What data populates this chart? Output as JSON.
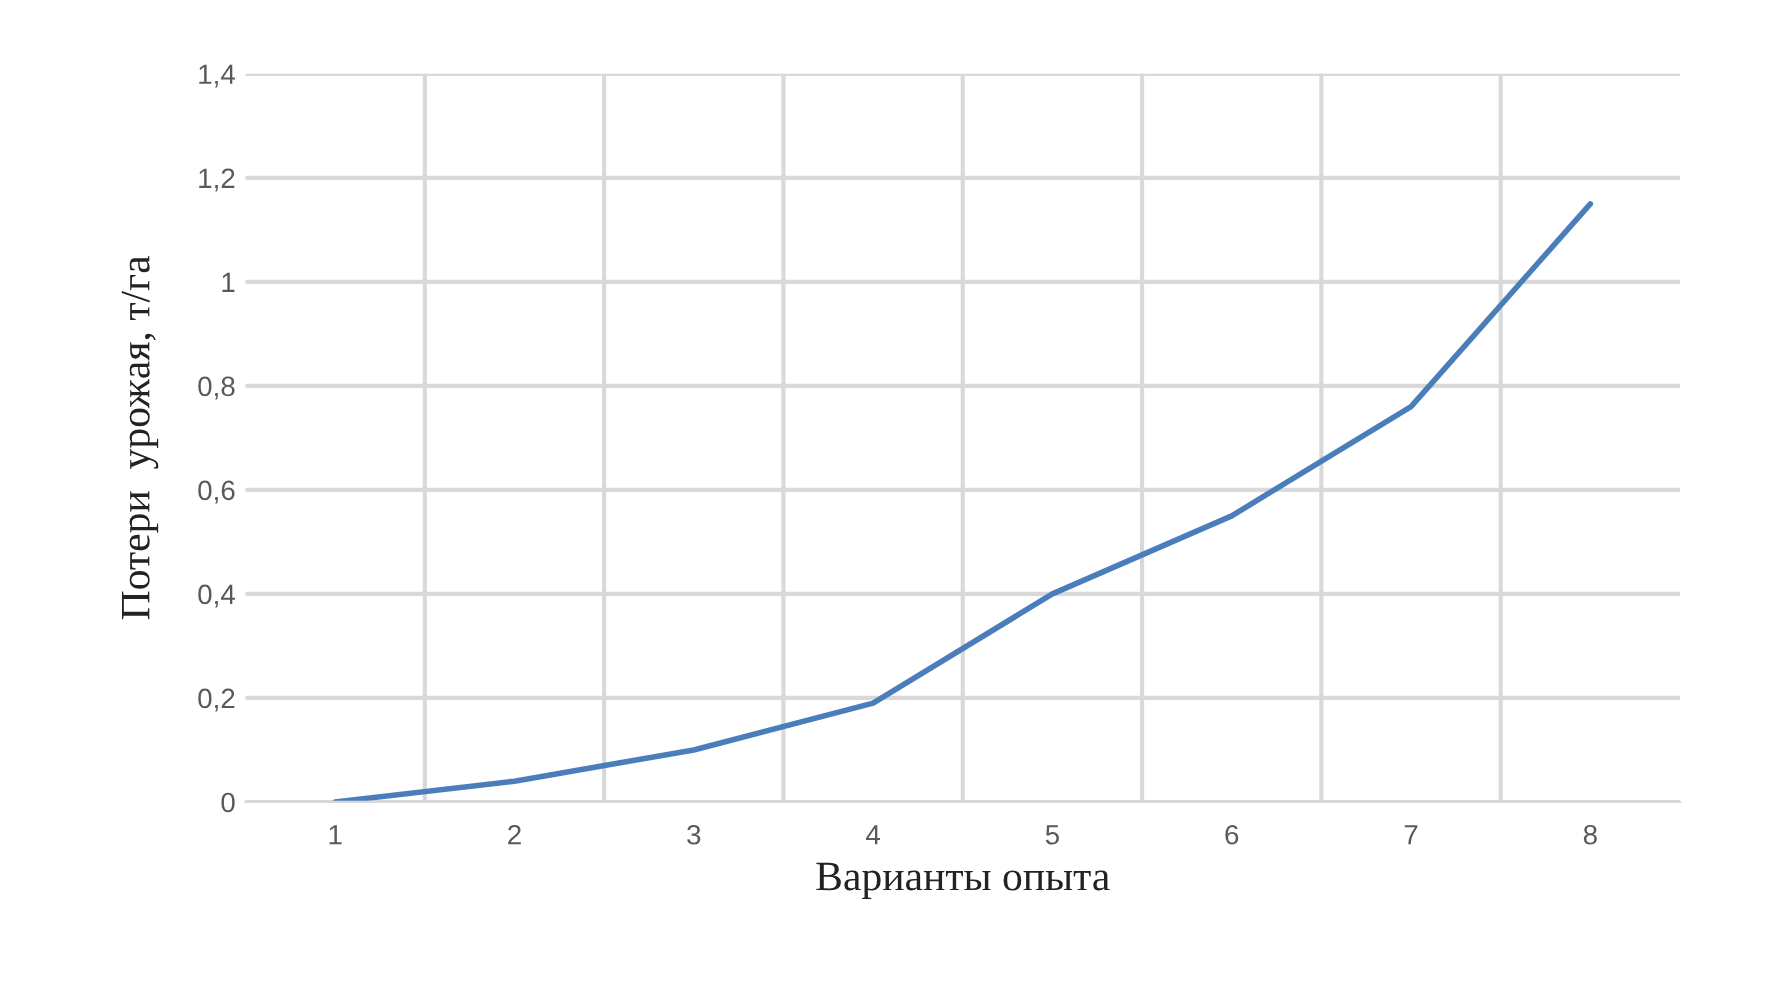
{
  "chart_data": {
    "type": "line",
    "xlabel": "Варианты опыта",
    "ylabel": "Потери  урожая, т/га",
    "categories": [
      "1",
      "2",
      "3",
      "4",
      "5",
      "6",
      "7",
      "8"
    ],
    "series": [
      {
        "color": "#4a7ebb",
        "values": [
          0,
          0.04,
          0.1,
          0.19,
          0.4,
          0.55,
          0.76,
          1.15
        ]
      }
    ],
    "ylim": [
      0,
      1.4
    ],
    "yticks": [
      0,
      {
        "value": 0.2,
        "label": "0,2"
      },
      {
        "value": 0.4,
        "label": "0,4"
      },
      {
        "value": 0.6,
        "label": "0,6"
      },
      {
        "value": 0.8,
        "label": "0,8"
      },
      1,
      {
        "value": 1.2,
        "label": "1,2"
      },
      {
        "value": 1.4,
        "label": "1,4"
      }
    ],
    "grid": true,
    "marker": "none",
    "line_style": "solid"
  }
}
